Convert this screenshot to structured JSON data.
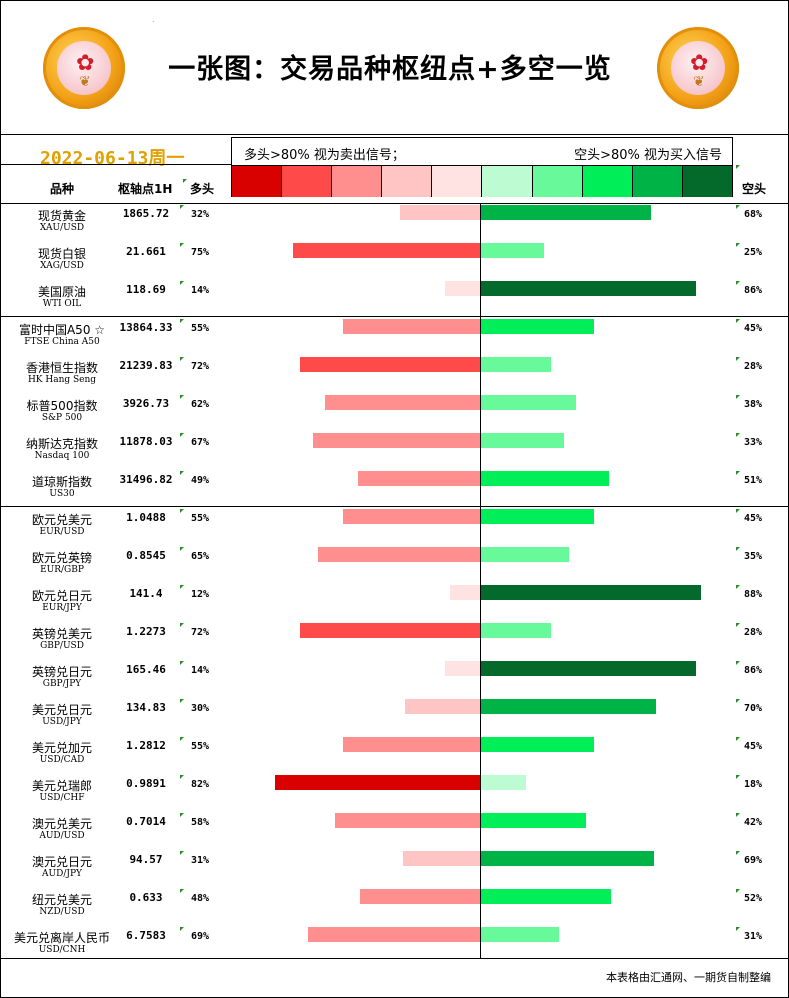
{
  "header": {
    "title": "一张图：交易品种枢纽点+多空一览",
    "date": "2022-06-13周一",
    "legend_left": "多头>80% 视为卖出信号；",
    "legend_right": "空头>80% 视为买入信号",
    "legend_colors": [
      "#d90000",
      "#ff4a4a",
      "#ff8f8f",
      "#ffc4c4",
      "#ffe3e3",
      "#bdfcd2",
      "#67f99a",
      "#00ee58",
      "#00b347",
      "#046a2c"
    ]
  },
  "columns": {
    "name": "品种",
    "pivot": "枢轴点1H",
    "long": "多头",
    "short": "空头"
  },
  "footer": "本表格由汇通网、一期货自制整编",
  "chart_data": {
    "type": "bar",
    "orientation": "diverging-horizontal",
    "categories": [
      "现货黄金",
      "现货白银",
      "美国原油",
      "富时中国A50 ☆",
      "香港恒生指数",
      "标普500指数",
      "纳斯达克指数",
      "道琼斯指数",
      "欧元兑美元",
      "欧元兑英镑",
      "欧元兑日元",
      "英镑兑美元",
      "英镑兑日元",
      "美元兑日元",
      "美元兑加元",
      "美元兑瑞郎",
      "澳元兑美元",
      "澳元兑日元",
      "纽元兑美元",
      "美元兑离岸人民币"
    ],
    "symbols": [
      "XAU/USD",
      "XAG/USD",
      "WTI OIL",
      "FTSE China A50",
      "HK Hang Seng",
      "S&P 500",
      "Nasdaq 100",
      "US30",
      "EUR/USD",
      "EUR/GBP",
      "EUR/JPY",
      "GBP/USD",
      "GBP/JPY",
      "USD/JPY",
      "USD/CAD",
      "USD/CHF",
      "AUD/USD",
      "AUD/JPY",
      "NZD/USD",
      "USD/CNH"
    ],
    "pivot": [
      "1865.72",
      "21.661",
      "118.69",
      "13864.33",
      "21239.83",
      "3926.73",
      "11878.03",
      "31496.82",
      "1.0488",
      "0.8545",
      "141.4",
      "1.2273",
      "165.46",
      "134.83",
      "1.2812",
      "0.9891",
      "0.7014",
      "94.57",
      "0.633",
      "6.7583"
    ],
    "series": [
      {
        "name": "多头",
        "values": [
          32,
          75,
          14,
          55,
          72,
          62,
          67,
          49,
          55,
          65,
          12,
          72,
          14,
          30,
          55,
          82,
          58,
          31,
          48,
          69
        ]
      },
      {
        "name": "空头",
        "values": [
          68,
          25,
          86,
          45,
          28,
          38,
          33,
          51,
          45,
          35,
          88,
          28,
          86,
          70,
          45,
          18,
          42,
          69,
          52,
          31
        ]
      }
    ],
    "value_suffix": "%",
    "xlim": [
      0,
      100
    ]
  }
}
